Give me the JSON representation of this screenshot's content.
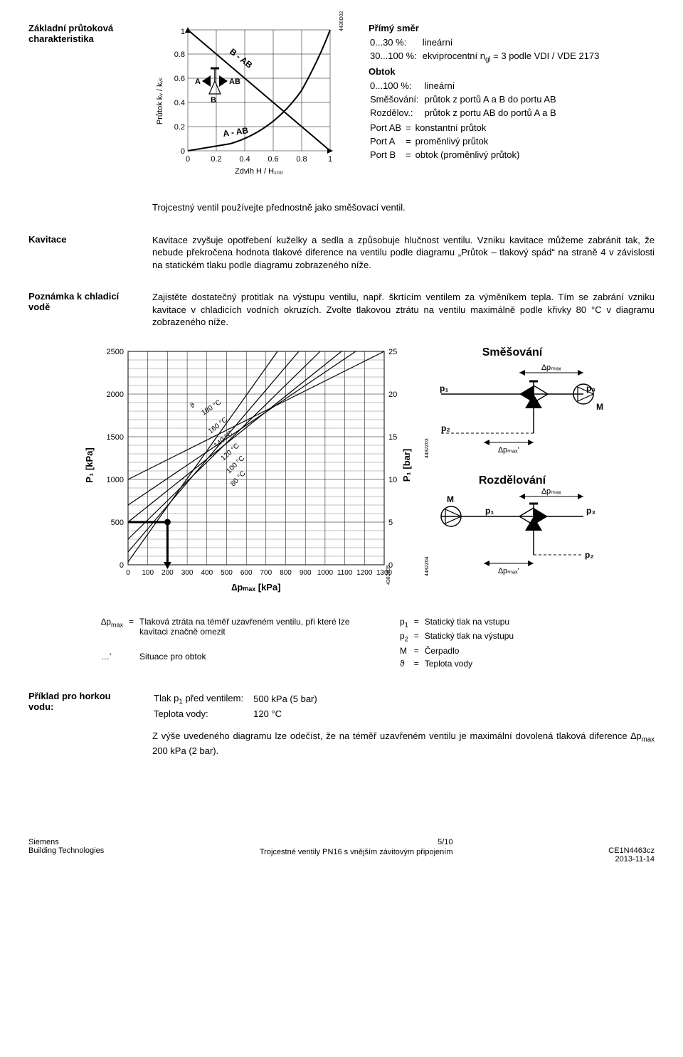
{
  "header": {
    "title": "Základní průtoková charakteristika"
  },
  "flowchart": {
    "code": "4430D02",
    "y_label": "Průtok k<sub>v</sub> / k<sub>vs</sub>",
    "x_label": "Zdvih H / H<sub>100</sub>",
    "y_ticks": [
      "0",
      "0.2",
      "0.4",
      "0.6",
      "0.8",
      "1"
    ],
    "x_ticks": [
      "0",
      "0.2",
      "0.4",
      "0.6",
      "0.8",
      "1"
    ],
    "curve_labels": {
      "bab": "B - AB",
      "aab": "A - AB"
    },
    "icon_labels": {
      "a": "A",
      "b": "B",
      "ab": "AB"
    }
  },
  "defs": {
    "primy_title": "Přímý směr",
    "primy_rows": [
      {
        "k": "0...30 %:",
        "v": "lineární"
      },
      {
        "k": "30...100 %:",
        "v": "ekviprocentní n<sub>gl</sub> = 3 podle VDI / VDE 2173"
      }
    ],
    "obtok_title": "Obtok",
    "obtok_rows": [
      {
        "k": "0...100 %:",
        "v": "lineární"
      }
    ],
    "mix_rows": [
      {
        "k": "Směšování:",
        "v": "průtok z portů A a B do portu AB"
      },
      {
        "k": "Rozdělov.:",
        "v": "průtok z portu AB do portů A a B"
      }
    ],
    "port_rows": [
      {
        "k": "Port AB",
        "eq": "=",
        "v": "konstantní průtok"
      },
      {
        "k": "Port A",
        "eq": "=",
        "v": "proměnlivý průtok"
      },
      {
        "k": "Port B",
        "eq": "=",
        "v": "obtok (proměnlivý průtok)"
      }
    ]
  },
  "troj_note": "Trojcestný ventil používejte přednostně jako směšovací ventil.",
  "kavitace": {
    "title": "Kavitace",
    "text": "Kavitace zvyšuje opotřebení kuželky a sedla a způsobuje hlučnost ventilu. Vzniku kavitace můžeme zabránit tak, že nebude překročena hodnota tlakové diference na ventilu podle diagramu „Průtok – tlakový spád“ na straně 4 v závislosti na statickém tlaku podle diagramu zobrazeného níže."
  },
  "poznamka": {
    "title": "Poznámka k chladicí vodě",
    "text": "Zajistěte dostatečný protitlak na výstupu ventilu, např. škrtícím ventilem za výměníkem tepla. Tím se zabrání vzniku kavitace v chladicích vodních okruzích. Zvolte tlakovou ztrátu na ventilu maximálně podle křivky 80 °C v diagramu zobrazeného níže."
  },
  "bigchart": {
    "y_ticks": [
      "0",
      "500",
      "1000",
      "1500",
      "2000",
      "2500"
    ],
    "y2_ticks": [
      "0",
      "5",
      "10",
      "15",
      "20",
      "25"
    ],
    "x_ticks": [
      "0",
      "100",
      "200",
      "300",
      "400",
      "500",
      "600",
      "700",
      "800",
      "900",
      "1000",
      "1100",
      "1200",
      "1300"
    ],
    "y_label": "P<sub>1</sub> [kPa]",
    "y2_label": "P<sub>1</sub> [bar]",
    "x_label": "∆p<sub>max</sub> [kPa]",
    "temps": [
      "180 °C",
      "160 °C",
      "140 °C",
      "120 °C",
      "100 °C",
      "80 °C"
    ],
    "theta": "ϑ",
    "right": {
      "mix_title": "Směšování",
      "div_title": "Rozdělování",
      "dp_max": "∆p<sub>max</sub>",
      "dp_maxp": "∆p<sub>max'</sub>",
      "p1": "p<sub>1</sub>",
      "p2": "p<sub>2</sub>",
      "p3": "p<sub>3</sub>",
      "M": "M"
    },
    "codes": {
      "z03": "4482Z03",
      "z04": "4482Z04",
      "z05": "4382Z05"
    }
  },
  "legend": {
    "left": [
      {
        "k": "∆p<sub>max</sub>",
        "eq": "=",
        "v": "Tlaková ztráta na téměř uzavřeném ventilu, při které lze kavitaci značně omezit"
      },
      {
        "k": "…'",
        "eq": "",
        "v": "Situace pro obtok"
      }
    ],
    "right": [
      {
        "k": "p<sub>1</sub>",
        "eq": "=",
        "v": "Statický tlak na vstupu"
      },
      {
        "k": "p<sub>2</sub>",
        "eq": "=",
        "v": "Statický tlak na výstupu"
      },
      {
        "k": "M",
        "eq": "=",
        "v": "Čerpadlo"
      },
      {
        "k": "ϑ",
        "eq": "=",
        "v": "Teplota vody"
      }
    ]
  },
  "example": {
    "title": "Příklad pro horkou vodu:",
    "rows": [
      {
        "k": "Tlak p<sub>1</sub> před ventilem:",
        "v": "500 kPa (5 bar)"
      },
      {
        "k": "Teplota vody:",
        "v": "120 °C"
      }
    ],
    "para": "Z výše uvedeného diagramu lze odečíst, že na téměř uzavřeném ventilu je maximální dovolená tlaková diference ∆p<sub>max</sub>  200 kPa (2 bar)."
  },
  "footer": {
    "pg": "5/10",
    "l1": "Siemens",
    "l2": "Building Technologies",
    "c": "Trojcestné ventily PN16 s vnějším závitovým připojením",
    "r1": "CE1N4463cz",
    "r2": "2013-11-14"
  }
}
